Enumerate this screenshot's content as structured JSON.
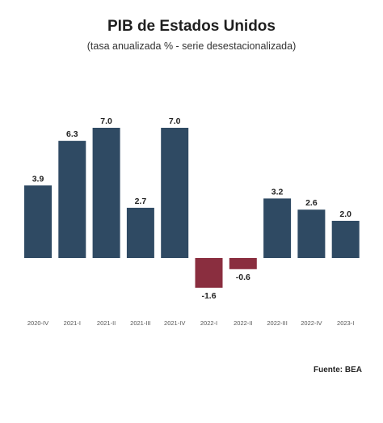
{
  "chart_data": {
    "type": "bar",
    "title": "PIB de Estados Unidos",
    "subtitle": "(tasa anualizada % - serie desestacionalizada)",
    "categories": [
      "2020-IV",
      "2021-I",
      "2021-II",
      "2021-III",
      "2021-IV",
      "2022-I",
      "2022-II",
      "2022-III",
      "2022-IV",
      "2023-I"
    ],
    "tick_labels": [
      "2020-IV",
      "2021-I",
      "2021-II",
      "2021-III",
      "2021-IV",
      "2022-I",
      "2022-II",
      "2022-III",
      "2022-IV",
      "2023-I"
    ],
    "values": [
      3.9,
      6.3,
      7.0,
      2.7,
      7.0,
      -1.6,
      -0.6,
      3.2,
      2.6,
      2.0
    ],
    "data_labels": [
      "3.9",
      "6.3",
      "7.0",
      "2.7",
      "7.0",
      "-1.6",
      "-0.6",
      "3.2",
      "2.6",
      "2.0"
    ],
    "xlabel": "",
    "ylabel": "",
    "ylim": [
      -2.5,
      7.5
    ],
    "grid": false,
    "legend": "none",
    "colors": {
      "positive": "#2f4a63",
      "negative": "#8a2e3f"
    }
  },
  "source": "Fuente: BEA"
}
